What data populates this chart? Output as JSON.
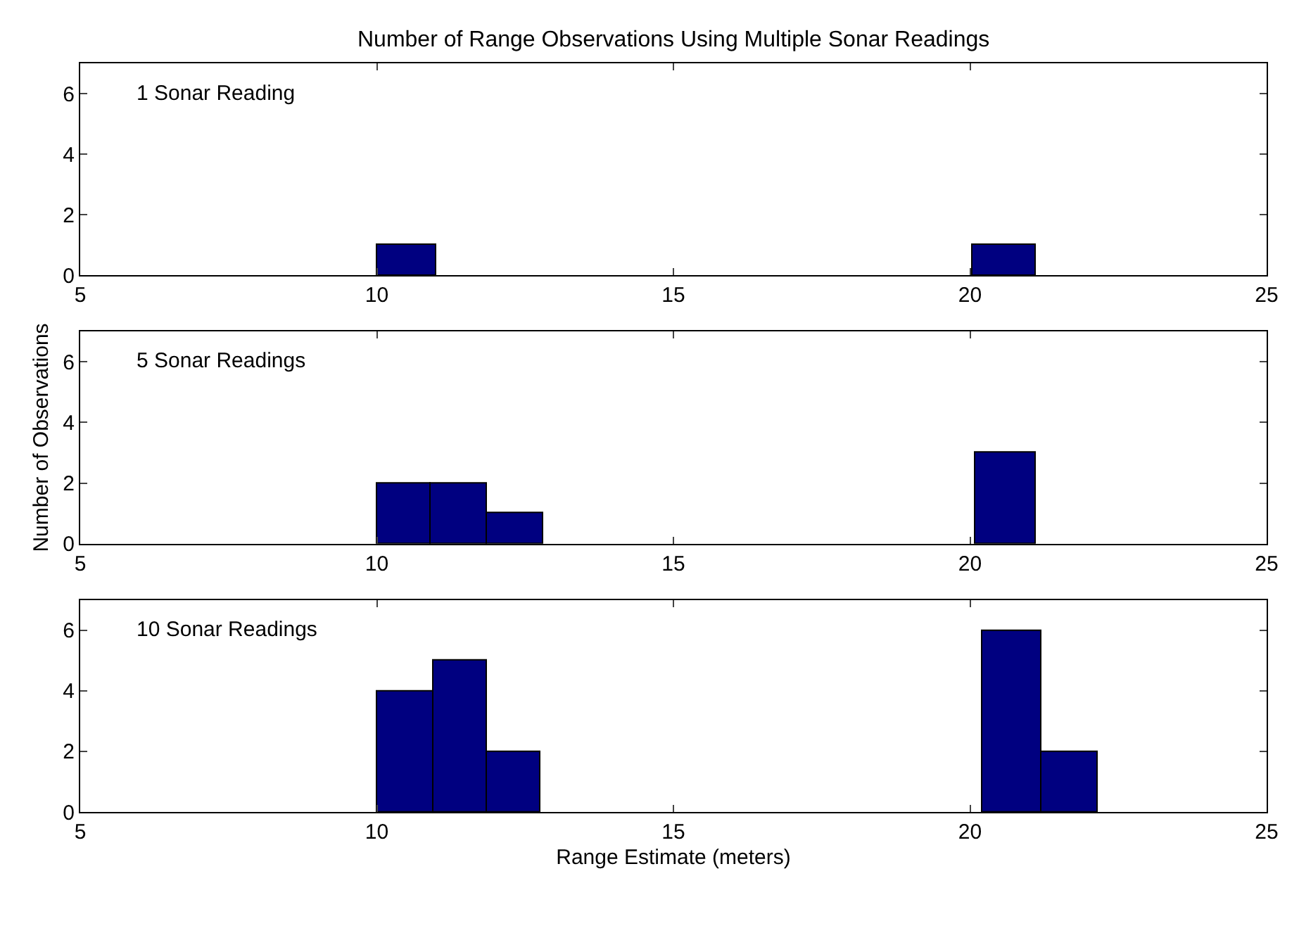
{
  "chart_data": [
    {
      "type": "histogram",
      "title": "Number of Range Observations Using Multiple Sonar Readings",
      "annotations": [
        "1 Sonar Reading"
      ],
      "bins": [
        10,
        11,
        20.05,
        21.1
      ],
      "values": [
        1,
        0,
        1
      ],
      "color": "#000080",
      "xlim": [
        5,
        25
      ],
      "xticks": [
        5,
        10,
        15,
        20,
        25
      ],
      "ylim": [
        0,
        7
      ],
      "yticks": [
        0,
        2,
        4,
        6
      ]
    },
    {
      "type": "histogram",
      "ylabel": "Number of Observations",
      "annotations": [
        "5 Sonar Readings"
      ],
      "bins": [
        10,
        10.9,
        11.85,
        12.8,
        20.1,
        21.1
      ],
      "values": [
        2,
        2,
        1,
        0,
        3
      ],
      "color": "#000080",
      "xlim": [
        5,
        25
      ],
      "xticks": [
        5,
        10,
        15,
        20,
        25
      ],
      "ylim": [
        0,
        7
      ],
      "yticks": [
        0,
        2,
        4,
        6
      ]
    },
    {
      "type": "histogram",
      "xlabel": "Range Estimate (meters)",
      "annotations": [
        "10 Sonar Readings"
      ],
      "bins": [
        10,
        10.95,
        11.85,
        12.75,
        20.2,
        21.2,
        22.15
      ],
      "values": [
        4,
        5,
        2,
        0,
        6,
        2
      ],
      "color": "#000080",
      "xlim": [
        5,
        25
      ],
      "xticks": [
        5,
        10,
        15,
        20,
        25
      ],
      "ylim": [
        0,
        7
      ],
      "yticks": [
        0,
        2,
        4,
        6
      ]
    }
  ]
}
